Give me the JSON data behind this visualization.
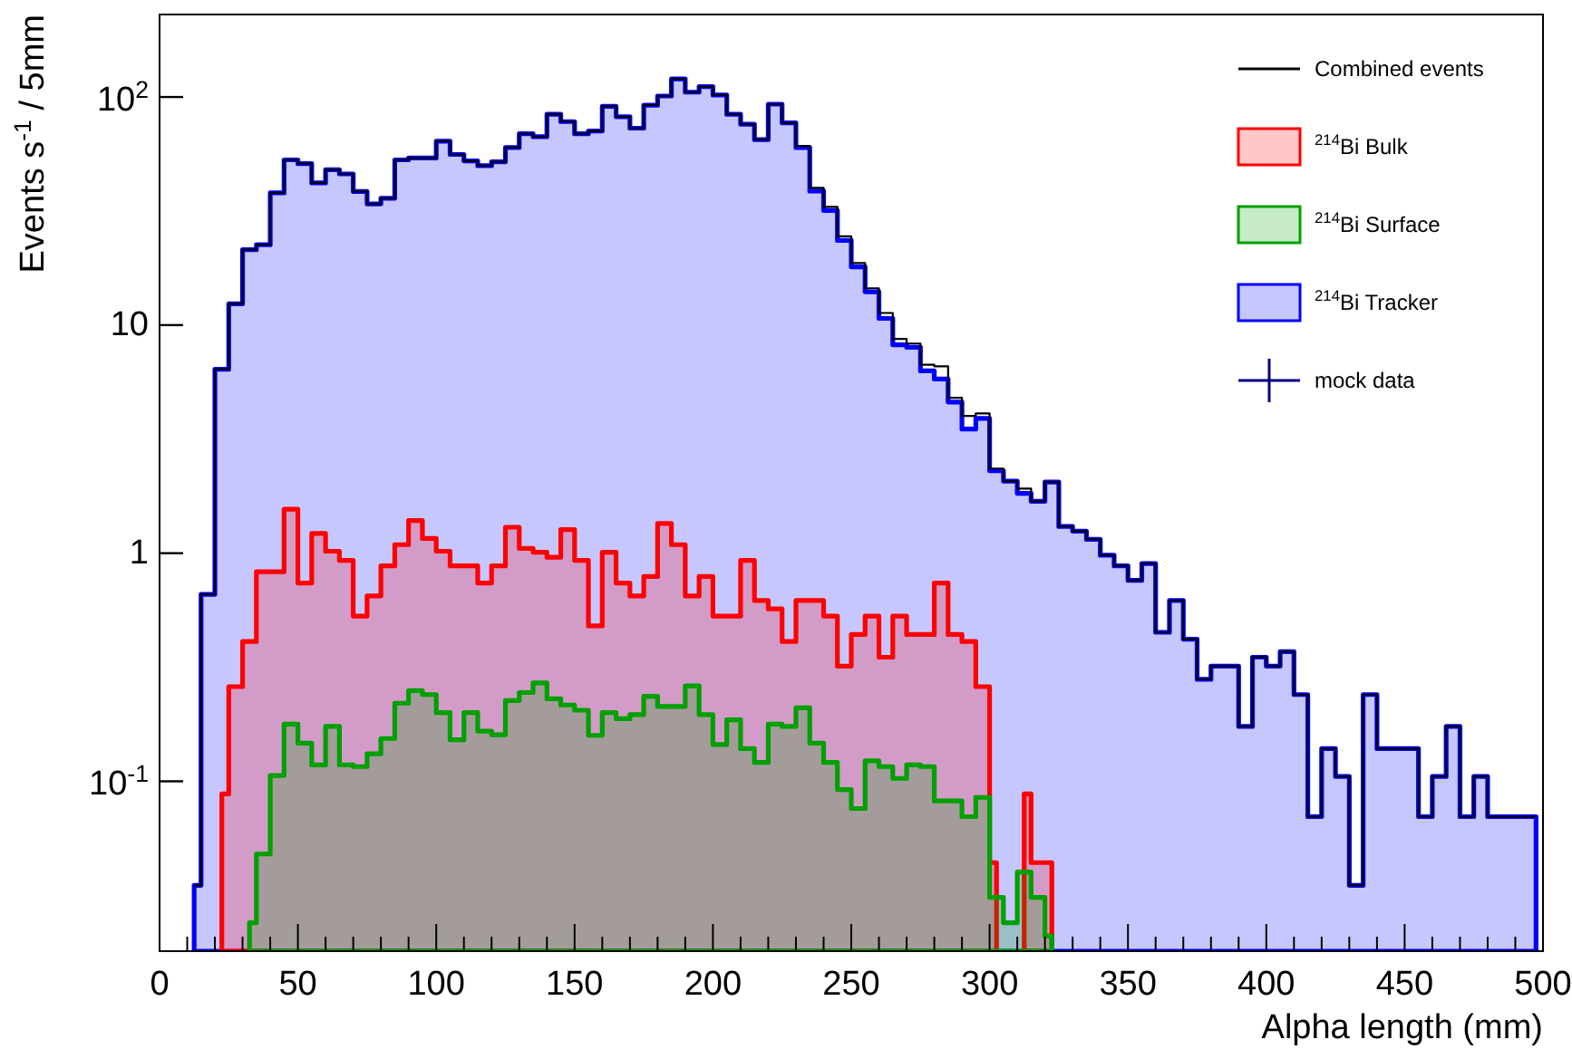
{
  "chart_data": {
    "type": "area",
    "xlabel": "Alpha length (mm)",
    "ylabel": "Events s$^{-1}$ / 5mm",
    "log": true,
    "grid": false,
    "legend": "top right",
    "xlim": [
      0,
      500
    ],
    "ylim": [
      0.018,
      230
    ],
    "xticks": [
      0,
      {
        "value": 10,
        "label": null
      },
      {
        "value": 20,
        "label": null
      },
      {
        "value": 30,
        "label": null
      },
      {
        "value": 40,
        "label": null
      },
      50,
      {
        "value": 60,
        "label": null
      },
      {
        "value": 70,
        "label": null
      },
      {
        "value": 80,
        "label": null
      },
      {
        "value": 90,
        "label": null
      },
      100,
      {
        "value": 110,
        "label": null
      },
      {
        "value": 120,
        "label": null
      },
      {
        "value": 130,
        "label": null
      },
      {
        "value": 140,
        "label": null
      },
      150,
      {
        "value": 160,
        "label": null
      },
      {
        "value": 170,
        "label": null
      },
      {
        "value": 180,
        "label": null
      },
      {
        "value": 190,
        "label": null
      },
      200,
      {
        "value": 210,
        "label": null
      },
      {
        "value": 220,
        "label": null
      },
      {
        "value": 230,
        "label": null
      },
      {
        "value": 240,
        "label": null
      },
      250,
      {
        "value": 260,
        "label": null
      },
      {
        "value": 270,
        "label": null
      },
      {
        "value": 280,
        "label": null
      },
      {
        "value": 290,
        "label": null
      },
      300,
      {
        "value": 310,
        "label": null
      },
      {
        "value": 320,
        "label": null
      },
      {
        "value": 330,
        "label": null
      },
      {
        "value": 340,
        "label": null
      },
      350,
      {
        "value": 360,
        "label": null
      },
      {
        "value": 370,
        "label": null
      },
      {
        "value": 380,
        "label": null
      },
      {
        "value": 390,
        "label": null
      },
      400,
      {
        "value": 410,
        "label": null
      },
      {
        "value": 420,
        "label": null
      },
      {
        "value": 430,
        "label": null
      },
      {
        "value": 440,
        "label": null
      },
      450,
      {
        "value": 460,
        "label": null
      },
      {
        "value": 470,
        "label": null
      },
      {
        "value": 480,
        "label": null
      },
      {
        "value": 490,
        "label": null
      },
      500
    ],
    "yticks": [
      {
        "value": 0.1,
        "label": "10$^{-1}$"
      },
      1,
      10,
      {
        "value": 100,
        "label": "10$^{2}$"
      }
    ],
    "x": [
      12.5,
      17.5,
      22.5,
      27.5,
      32.5,
      37.5,
      42.5,
      47.5,
      52.5,
      57.5,
      62.5,
      67.5,
      72.5,
      77.5,
      82.5,
      87.5,
      92.5,
      97.5,
      102.5,
      107.5,
      112.5,
      117.5,
      122.5,
      127.5,
      132.5,
      137.5,
      142.5,
      147.5,
      152.5,
      157.5,
      162.5,
      167.5,
      172.5,
      177.5,
      182.5,
      187.5,
      192.5,
      197.5,
      202.5,
      207.5,
      212.5,
      217.5,
      222.5,
      227.5,
      232.5,
      237.5,
      242.5,
      247.5,
      252.5,
      257.5,
      262.5,
      267.5,
      272.5,
      277.5,
      282.5,
      287.5,
      292.5,
      297.5,
      302.5,
      307.5,
      312.5,
      317.5,
      322.5,
      327.5,
      332.5,
      337.5,
      342.5,
      347.5,
      352.5,
      357.5,
      362.5,
      367.5,
      372.5,
      377.5,
      382.5,
      387.5,
      392.5,
      397.5,
      402.5,
      407.5,
      412.5,
      417.5,
      422.5,
      427.5,
      432.5,
      437.5,
      442.5,
      447.5,
      452.5,
      457.5,
      462.5,
      467.5,
      472.5,
      477.5,
      482.5,
      487.5,
      492.5,
      497.5
    ],
    "series": [
      {
        "name": "Combined events",
        "type": "step",
        "color": "#000000",
        "values": [
          0.035,
          0.66,
          6.4,
          12.4,
          21.4,
          22.5,
          38,
          53,
          51,
          42,
          48,
          46,
          38.5,
          34,
          36,
          53,
          54,
          54,
          64,
          56,
          52.5,
          50,
          52,
          60,
          69,
          67,
          84,
          78,
          69,
          71,
          91,
          82,
          73,
          92,
          101,
          120,
          105,
          111,
          102,
          84,
          76,
          65,
          93,
          77,
          61,
          40,
          33,
          24.5,
          18.7,
          14.5,
          11.3,
          8.7,
          8.3,
          6.7,
          6.6,
          4.8,
          4.0,
          4.1,
          2.35,
          2.07,
          1.92,
          1.69,
          2.05,
          1.31,
          1.25,
          1.15,
          0.98,
          0.88,
          0.76,
          0.9,
          0.45,
          0.62,
          0.42,
          0.28,
          0.32,
          0.32,
          0.174,
          0.35,
          0.32,
          0.37,
          0.24,
          0.07,
          0.139,
          0.105,
          0.035,
          0.24,
          0.139,
          0.139,
          0.139,
          0.07,
          0.105,
          0.174,
          0.07,
          0.105,
          0.07,
          0.07,
          0.07,
          0.07
        ]
      },
      {
        "name": "$^{214}$Bi Bulk",
        "color": "#ff0000",
        "values": [
          null,
          null,
          0.088,
          0.26,
          0.41,
          0.83,
          0.83,
          1.56,
          0.74,
          1.22,
          1.02,
          0.93,
          0.53,
          0.65,
          0.88,
          1.09,
          1.39,
          1.16,
          1.02,
          0.88,
          0.88,
          0.74,
          0.88,
          1.3,
          1.05,
          1.01,
          0.96,
          1.27,
          0.93,
          0.48,
          1.01,
          0.74,
          0.65,
          0.79,
          1.35,
          1.09,
          0.65,
          0.79,
          0.53,
          0.53,
          0.93,
          0.62,
          0.57,
          0.41,
          0.62,
          0.62,
          0.53,
          0.32,
          0.44,
          0.53,
          0.35,
          0.53,
          0.44,
          0.44,
          0.74,
          0.44,
          0.41,
          0.26,
          0.044,
          null,
          0.088,
          0.044,
          0.044,
          null,
          null,
          null,
          null,
          null,
          null,
          null,
          null,
          null,
          null,
          null,
          null,
          null,
          null,
          null,
          null,
          null,
          null,
          null,
          null,
          null,
          null,
          null,
          null,
          null,
          null,
          null,
          null,
          null,
          null,
          null,
          null,
          null,
          null,
          null
        ]
      },
      {
        "name": "$^{214}$Bi Surface",
        "color": "#00a000",
        "values": [
          null,
          null,
          null,
          null,
          0.024,
          0.048,
          0.106,
          0.178,
          0.147,
          0.118,
          0.174,
          0.118,
          0.116,
          0.132,
          0.154,
          0.22,
          0.25,
          0.24,
          0.2,
          0.152,
          0.2,
          0.166,
          0.16,
          0.226,
          0.245,
          0.27,
          0.23,
          0.216,
          0.205,
          0.159,
          0.2,
          0.188,
          0.196,
          0.236,
          0.213,
          0.213,
          0.262,
          0.196,
          0.145,
          0.186,
          0.139,
          0.121,
          0.178,
          0.174,
          0.21,
          0.147,
          0.121,
          0.092,
          0.076,
          0.123,
          0.116,
          0.103,
          0.118,
          0.116,
          0.082,
          0.082,
          0.07,
          0.085,
          0.031,
          0.024,
          0.04,
          0.031,
          0.021,
          null,
          null,
          null,
          null,
          null,
          null,
          null,
          null,
          null,
          null,
          null,
          null,
          null,
          null,
          null,
          null,
          null,
          null,
          null,
          null,
          null,
          null,
          null,
          null,
          null,
          null,
          null,
          null,
          null,
          null,
          null,
          null,
          null,
          null,
          null
        ]
      },
      {
        "name": "$^{214}$Bi Tracker",
        "color": "#0000ff",
        "values": [
          0.035,
          0.66,
          6.4,
          12.4,
          21.4,
          22.5,
          38,
          53,
          51,
          42,
          48,
          46,
          38.5,
          34,
          36,
          53,
          54,
          54,
          64,
          56,
          52.5,
          50,
          52,
          60,
          69,
          67,
          84,
          78,
          69,
          71,
          91,
          82,
          73,
          92,
          101,
          120,
          105,
          111,
          102,
          84,
          76,
          65,
          93,
          77,
          60,
          38.7,
          31.8,
          23.5,
          18,
          14,
          10.7,
          8.2,
          8,
          6.3,
          5.8,
          4.6,
          3.5,
          3.9,
          2.3,
          2.07,
          1.83,
          1.69,
          2.05,
          1.31,
          1.25,
          1.15,
          0.98,
          0.88,
          0.76,
          0.9,
          0.45,
          0.62,
          0.42,
          0.28,
          0.32,
          0.32,
          0.174,
          0.35,
          0.32,
          0.37,
          0.24,
          0.07,
          0.139,
          0.105,
          0.035,
          0.24,
          0.139,
          0.139,
          0.139,
          0.07,
          0.105,
          0.174,
          0.07,
          0.105,
          0.07,
          0.07,
          0.07,
          0.07
        ]
      },
      {
        "name": "mock data",
        "type": "scatter",
        "color": "#000080",
        "values": [
          null,
          null,
          null,
          null,
          null,
          null,
          null,
          null,
          null,
          null,
          null,
          null,
          null,
          null,
          null,
          null,
          null,
          null,
          null,
          null,
          null,
          null,
          null,
          null,
          null,
          null,
          null,
          null,
          null,
          null,
          null,
          null,
          null,
          null,
          null,
          null,
          null,
          null,
          null,
          null,
          null,
          null,
          null,
          null,
          null,
          null,
          null,
          null,
          null,
          null,
          null,
          null,
          null,
          null,
          null,
          null,
          null,
          null,
          null,
          null,
          null,
          null,
          null,
          null,
          null,
          null,
          null,
          null,
          null,
          null,
          null,
          null,
          null,
          null,
          null,
          null,
          null,
          null,
          null,
          null,
          null,
          null,
          null,
          null,
          null,
          null,
          null,
          null,
          null,
          null,
          null,
          null,
          null,
          null,
          null,
          null,
          null,
          null
        ]
      }
    ]
  }
}
